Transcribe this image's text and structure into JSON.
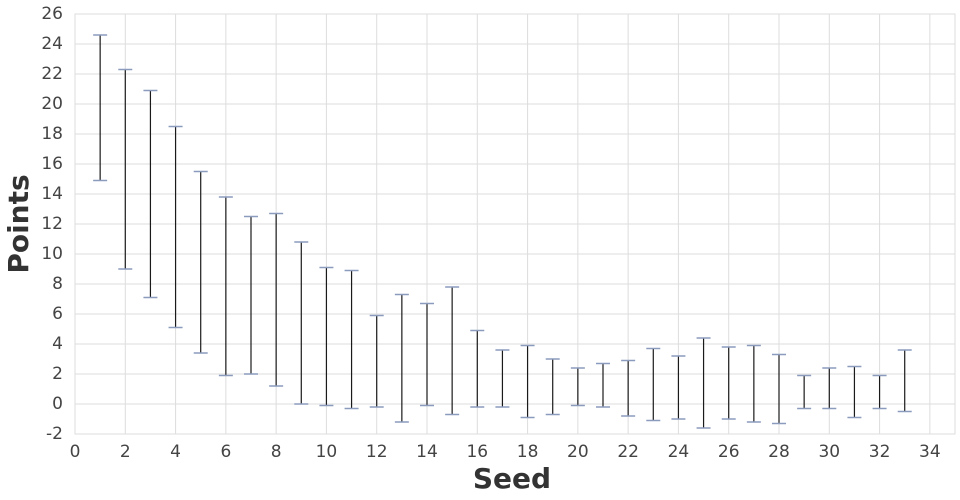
{
  "chart_data": {
    "type": "errorbar",
    "x_label": "Seed",
    "y_label": "Points",
    "x": [
      1,
      2,
      3,
      4,
      5,
      6,
      7,
      8,
      9,
      10,
      11,
      12,
      13,
      14,
      15,
      16,
      17,
      18,
      19,
      20,
      21,
      22,
      23,
      24,
      25,
      26,
      27,
      28,
      29,
      30,
      31,
      32,
      33
    ],
    "low": [
      14.9,
      9.0,
      7.1,
      5.1,
      3.4,
      1.9,
      2.0,
      1.2,
      0.0,
      -0.1,
      -0.3,
      -0.2,
      -1.2,
      -0.1,
      -0.7,
      -0.2,
      -0.2,
      -0.9,
      -0.7,
      -0.1,
      -0.2,
      -0.8,
      -1.1,
      -1.0,
      -1.6,
      -1.0,
      -1.2,
      -1.3,
      -0.3,
      -0.3,
      -0.9,
      -0.3,
      -0.5
    ],
    "high": [
      24.6,
      22.3,
      20.9,
      18.5,
      15.5,
      13.8,
      12.5,
      12.7,
      10.8,
      9.1,
      8.9,
      5.9,
      7.3,
      6.7,
      7.8,
      4.9,
      3.6,
      3.9,
      3.0,
      2.4,
      2.7,
      2.9,
      3.7,
      3.2,
      4.4,
      3.8,
      3.9,
      3.3,
      1.9,
      2.4,
      2.5,
      1.9,
      3.6
    ],
    "line_color": "#1a1a1a",
    "cap_color": "#8a9bbd",
    "xlim": [
      0,
      35
    ],
    "xticks": [
      0,
      2,
      4,
      6,
      8,
      10,
      12,
      14,
      16,
      18,
      20,
      22,
      24,
      26,
      28,
      30,
      32,
      34
    ],
    "ylim": [
      -2,
      26
    ],
    "yticks": [
      -2,
      0,
      2,
      4,
      6,
      8,
      10,
      12,
      14,
      16,
      18,
      20,
      22,
      24,
      26
    ],
    "grid": true
  }
}
